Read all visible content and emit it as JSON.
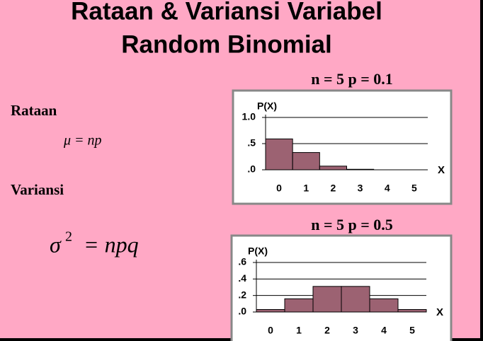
{
  "title_lines": [
    "Rataan & Variansi Variabel",
    "Random Binomial"
  ],
  "mean_heading": "Rataan",
  "mean_formula": "μ = np",
  "variance_heading": "Variansi",
  "variance_formula": {
    "base": "σ",
    "exponent": "2",
    "rest": "= npq"
  },
  "chart_data": [
    {
      "type": "bar",
      "title": "n = 5  p = 0.1",
      "y_label": "P(X)",
      "x_label": "X",
      "categories": [
        "0",
        "1",
        "2",
        "3",
        "4",
        "5"
      ],
      "values": [
        0.59,
        0.33,
        0.07,
        0.01,
        0,
        0
      ],
      "color": "#9c6272",
      "ylim": [
        0,
        1
      ],
      "yticks": [
        {
          "value": 0,
          "label": ".0"
        },
        {
          "value": 0.5,
          "label": ".5"
        },
        {
          "value": 1,
          "label": "1.0"
        }
      ],
      "grid": true
    },
    {
      "type": "bar",
      "title": "n = 5  p = 0.5",
      "y_label": "P(X)",
      "x_label": "X",
      "categories": [
        "0",
        "1",
        "2",
        "3",
        "4",
        "5"
      ],
      "values": [
        0.03,
        0.16,
        0.31,
        0.31,
        0.16,
        0.03
      ],
      "color": "#9c6272",
      "ylim": [
        0,
        0.6
      ],
      "yticks": [
        {
          "value": 0,
          "label": ".0"
        },
        {
          "value": 0.2,
          "label": ".2"
        },
        {
          "value": 0.4,
          "label": ".4"
        },
        {
          "value": 0.6,
          "label": ".6"
        }
      ],
      "grid": true
    }
  ]
}
